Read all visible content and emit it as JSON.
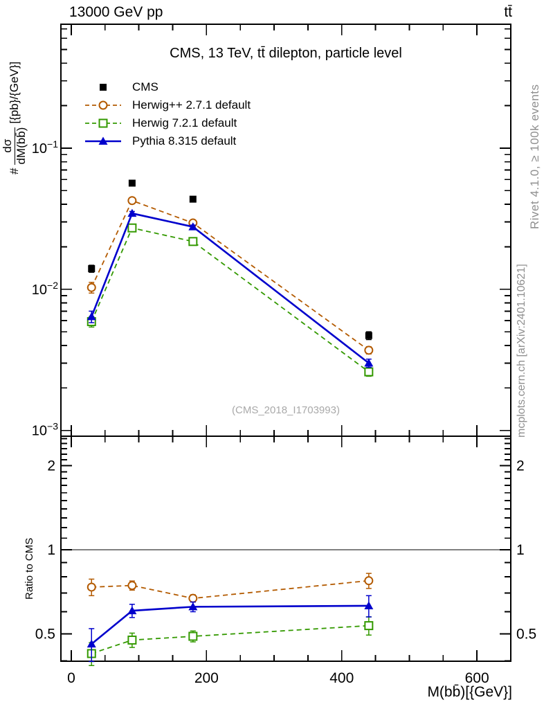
{
  "page": {
    "top_left_title": "13000 GeV pp",
    "top_right_title": "tt̄",
    "watermark": "(CMS_2018_I1703993)",
    "right_label_top": "Rivet 4.1.0, ≥ 100k events",
    "right_label_bottom": "mcplots.cern.ch [arXiv:2401.10621]"
  },
  "chart_data": {
    "type": "line",
    "title": "CMS, 13 TeV, tt̄ dilepton, particle level",
    "xlabel": "M(bb̄)[{GeV}]",
    "ylabel_main": {
      "prefix": "#",
      "numerator": "dσ",
      "denominator": "dM(bb̄)",
      "units": "[{pb}/{GeV}]"
    },
    "ylabel_ratio": "Ratio to CMS",
    "legend_position": "top-left-inside",
    "grid": "off",
    "x": [
      30,
      90,
      180,
      440
    ],
    "series": [
      {
        "name": "CMS",
        "color": "#000000",
        "marker": "square-filled",
        "line": "none",
        "values": [
          0.014,
          0.0565,
          0.0435,
          0.0047
        ],
        "errors": [
          0.0008,
          0.0018,
          0.0014,
          0.0003
        ],
        "ratio": null
      },
      {
        "name": "Herwig++ 2.7.1 default",
        "color": "#b35a00",
        "marker": "circle-open",
        "line": "dashed",
        "values": [
          0.0103,
          0.0425,
          0.0295,
          0.0037
        ],
        "errors": [
          0.0009,
          0.0013,
          0.0009,
          0.00022
        ],
        "ratio": [
          0.735,
          0.745,
          0.67,
          0.775
        ],
        "ratio_errors": [
          0.05,
          0.028,
          0.02,
          0.048
        ]
      },
      {
        "name": "Herwig 7.2.1 default",
        "color": "#339900",
        "marker": "square-open",
        "line": "dashed",
        "values": [
          0.0059,
          0.0272,
          0.0218,
          0.0026
        ],
        "errors": [
          0.0005,
          0.0009,
          0.0007,
          0.00018
        ],
        "ratio": [
          0.425,
          0.475,
          0.49,
          0.535
        ],
        "ratio_errors": [
          0.04,
          0.028,
          0.022,
          0.04
        ]
      },
      {
        "name": "Pythia 8.315 default",
        "color": "#0000cc",
        "marker": "triangle-filled",
        "line": "solid",
        "values": [
          0.0064,
          0.0345,
          0.0277,
          0.003
        ],
        "errors": [
          0.0006,
          0.0011,
          0.0008,
          0.0002
        ],
        "ratio": [
          0.46,
          0.605,
          0.625,
          0.63
        ],
        "ratio_errors": [
          0.062,
          0.033,
          0.025,
          0.055
        ]
      }
    ],
    "axes": {
      "x": {
        "min": -15.3,
        "max": 650,
        "major_ticks": [
          0,
          200,
          400,
          600
        ],
        "minor_step": 50,
        "tick_max": 600
      },
      "y_main": {
        "scale": "log",
        "min": 0.00091,
        "max": 0.755,
        "labeled_decades": [
          -1,
          -2,
          -3
        ]
      },
      "y_ratio": {
        "scale": "log",
        "min": 0.399,
        "max": 2.55,
        "labeled_ticks": [
          0.5,
          1,
          2
        ],
        "unity_line": 1
      }
    }
  }
}
